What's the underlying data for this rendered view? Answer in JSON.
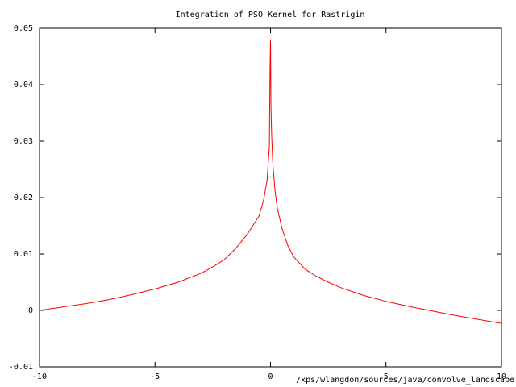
{
  "chart_data": {
    "type": "line",
    "title": "Integration of PSO Kernel for Rastrigin",
    "annotation": "/xps/wlangdon/sources/java/convolve_landscape",
    "series": [
      {
        "color": "#ff0000",
        "x": [
          -10,
          -9,
          -8,
          -7,
          -6,
          -5,
          -4,
          -3,
          -2.5,
          -2,
          -1.5,
          -1,
          -0.5,
          -0.3,
          -0.15,
          -0.05,
          -0.02,
          0,
          0.02,
          0.05,
          0.1,
          0.2,
          0.3,
          0.5,
          0.75,
          1,
          1.5,
          2,
          2.5,
          3,
          4,
          5,
          6,
          7,
          8,
          9,
          10
        ],
        "values": [
          0,
          0.0006,
          0.0012,
          0.0019,
          0.0028,
          0.0038,
          0.005,
          0.0066,
          0.0077,
          0.009,
          0.011,
          0.0135,
          0.0167,
          0.0195,
          0.023,
          0.029,
          0.043,
          0.048,
          0.036,
          0.031,
          0.026,
          0.021,
          0.018,
          0.0145,
          0.0115,
          0.0095,
          0.0073,
          0.006,
          0.005,
          0.0041,
          0.0027,
          0.0016,
          0.0007,
          -0.0001,
          -0.0009,
          -0.0016,
          -0.0023
        ]
      }
    ],
    "xlim": [
      -10,
      10
    ],
    "xticks": [
      -10,
      -5,
      0,
      5,
      10
    ],
    "ylim": [
      -0.01,
      0.05
    ],
    "yticks": [
      -0.01,
      0,
      0.01,
      0.02,
      0.03,
      0.04,
      0.05
    ]
  }
}
